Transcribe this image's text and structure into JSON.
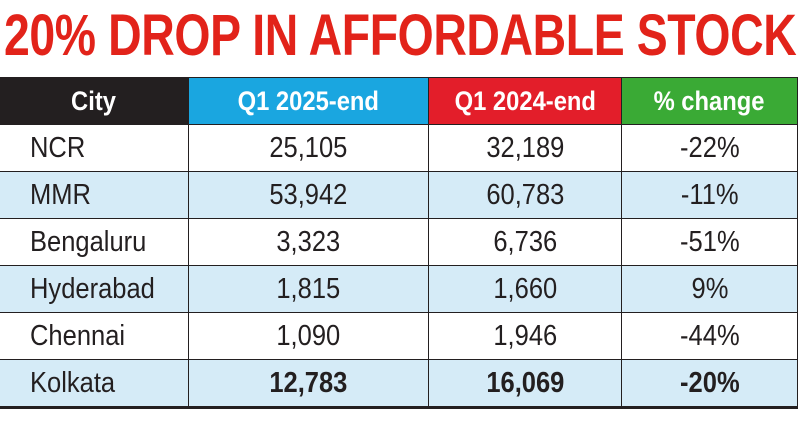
{
  "title": "20% DROP IN AFFORDABLE STOCK",
  "colors": {
    "title": "#e2231a",
    "header_city": "#231f20",
    "header_q1_2025": "#1aa6e0",
    "header_q1_2024": "#e31e2a",
    "header_change": "#3aaa35",
    "alt_row": "#d5ebf7"
  },
  "chart_data": {
    "type": "table",
    "title": "20% DROP IN AFFORDABLE STOCK",
    "columns": [
      "City",
      "Q1 2025-end",
      "Q1 2024-end",
      "% change"
    ],
    "rows": [
      [
        "NCR",
        "25,105",
        "32,189",
        "-22%"
      ],
      [
        "MMR",
        "53,942",
        "60,783",
        "-11%"
      ],
      [
        "Bengaluru",
        "3,323",
        "6,736",
        "-51%"
      ],
      [
        "Hyderabad",
        "1,815",
        "1,660",
        "9%"
      ],
      [
        "Chennai",
        "1,090",
        "1,946",
        "-44%"
      ],
      [
        "Kolkata",
        "12,783",
        "16,069",
        "-20%"
      ]
    ]
  }
}
